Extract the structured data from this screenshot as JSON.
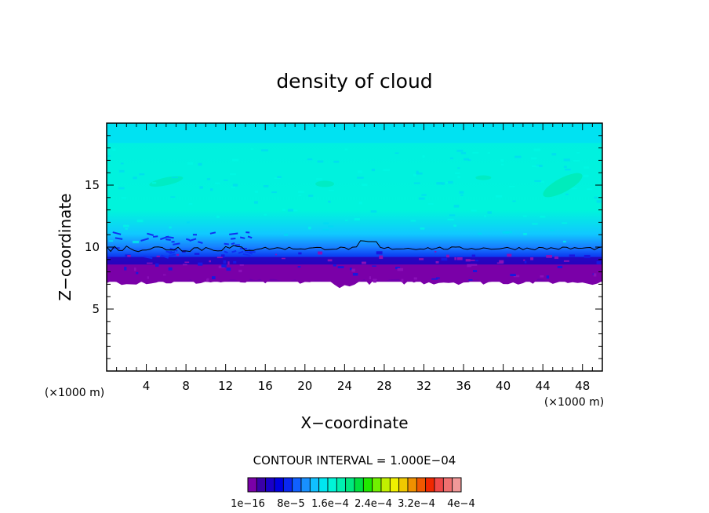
{
  "chart_data": {
    "type": "heatmap",
    "title": "density of cloud",
    "xlabel": "X−coordinate",
    "ylabel": "Z−coordinate",
    "x_unit": "(×1000 m)",
    "y_unit": "(×1000 m)",
    "xlim": [
      0,
      50
    ],
    "ylim": [
      0,
      20
    ],
    "x_ticks": [
      4,
      8,
      12,
      16,
      20,
      24,
      28,
      32,
      36,
      40,
      44,
      48
    ],
    "y_ticks": [
      5,
      10,
      15
    ],
    "x_tick_labels": [
      "4",
      "8",
      "12",
      "16",
      "20",
      "24",
      "28",
      "32",
      "36",
      "40",
      "44",
      "48"
    ],
    "y_tick_labels": [
      "5",
      "10",
      "15"
    ],
    "contour_interval_text": "CONTOUR INTERVAL = 1.000E−04",
    "colorbar": {
      "tick_labels": [
        "1e−16",
        "8e−5",
        "1.6e−4",
        "2.4e−4",
        "3.2e−4",
        "4e−4"
      ],
      "colors": [
        "#7a00a8",
        "#3a00a8",
        "#1a00c8",
        "#0000e0",
        "#0a28f0",
        "#1060ff",
        "#1890ff",
        "#10c0ff",
        "#00e6f0",
        "#00f4d8",
        "#00f0b0",
        "#00e880",
        "#00e040",
        "#20e800",
        "#70f000",
        "#c0f000",
        "#f0f000",
        "#f0c800",
        "#f09000",
        "#f05800",
        "#f02800",
        "#f04848",
        "#f07070",
        "#f09898"
      ]
    },
    "cloud_layer": {
      "base_km": 7.2,
      "top_km": 19.5,
      "contour_line_level_km": 9.9
    }
  }
}
